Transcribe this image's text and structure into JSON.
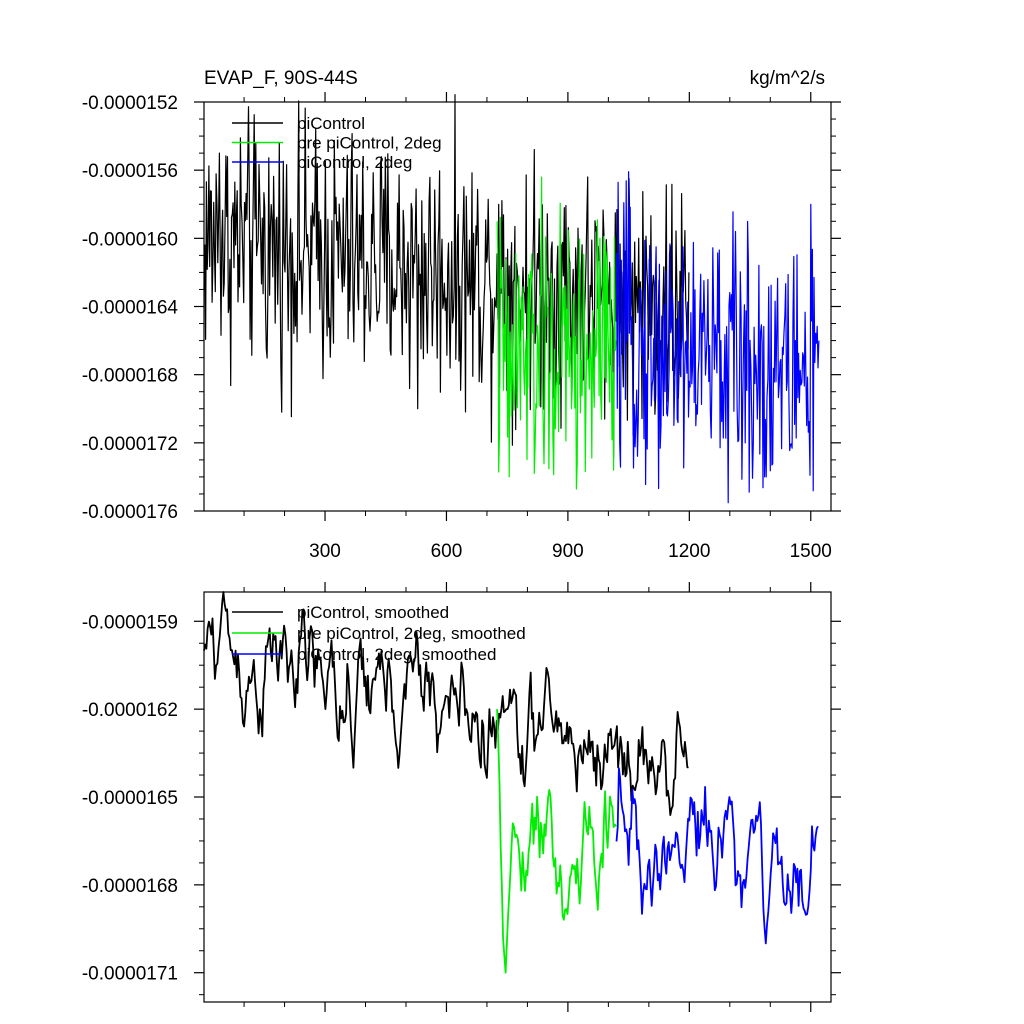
{
  "chart_data": [
    {
      "type": "line",
      "title": "EVAP_F, 90S-44S",
      "units": "kg/m^2/s",
      "xlim": [
        1,
        1550
      ],
      "ylim": [
        -1.76e-05,
        -1.52e-05
      ],
      "xticks": [
        300,
        600,
        900,
        1200,
        1500
      ],
      "xtick_labels": [
        "300",
        "600",
        "900",
        "1200",
        "1500"
      ],
      "yticks": [
        -1.52e-05,
        -1.56e-05,
        -1.6e-05,
        -1.64e-05,
        -1.68e-05,
        -1.72e-05,
        -1.76e-05
      ],
      "ytick_labels": [
        "-0.0000152",
        "-0.0000156",
        "-0.0000160",
        "-0.0000164",
        "-0.0000168",
        "-0.0000172",
        "-0.0000176"
      ],
      "legend_position": "top-left",
      "grid": false,
      "series": [
        {
          "name": "piControl",
          "color": "#000000",
          "x_range": [
            1,
            1200
          ],
          "start": -1.6e-05,
          "end": -1.64e-05,
          "noise": 3.6e-07,
          "anchors": [
            [
              1,
              -1.63e-05
            ],
            [
              40,
              -1.55e-05
            ],
            [
              140,
              -1.58e-05
            ],
            [
              530,
              -1.7e-05
            ],
            [
              730,
              -1.58e-05
            ],
            [
              1200,
              -1.62e-05
            ]
          ]
        },
        {
          "name": "pre piControl, 2deg",
          "color": "#00ee00",
          "x_range": [
            725,
            1020
          ],
          "start": -1.67e-05,
          "end": -1.67e-05,
          "noise": 4.2e-07,
          "anchors": [
            [
              725,
              -1.59e-05
            ],
            [
              755,
              -1.74e-05
            ],
            [
              980,
              -1.6e-05
            ],
            [
              1020,
              -1.66e-05
            ]
          ]
        },
        {
          "name": "piControl, 2deg",
          "color": "#0000ff",
          "x_range": [
            1020,
            1520
          ],
          "start": -1.66e-05,
          "end": -1.68e-05,
          "noise": 3.8e-07,
          "anchors": [
            [
              1390,
              -1.74e-05
            ],
            [
              1500,
              -1.58e-05
            ],
            [
              1520,
              -1.66e-05
            ]
          ]
        }
      ]
    },
    {
      "type": "line",
      "title": "",
      "xlim": [
        1,
        1550
      ],
      "ylim": [
        -1.72e-05,
        -1.58e-05
      ],
      "xticks": [
        300,
        600,
        900,
        1200,
        1500
      ],
      "yticks": [
        -1.59e-05,
        -1.62e-05,
        -1.65e-05,
        -1.68e-05,
        -1.71e-05
      ],
      "ytick_labels": [
        "-0.0000159",
        "-0.0000162",
        "-0.0000165",
        "-0.0000168",
        "-0.0000171"
      ],
      "legend_position": "top-left",
      "grid": false,
      "series": [
        {
          "name": "piControl, smoothed",
          "color": "#000000",
          "x_range": [
            1,
            1200
          ],
          "start": -1.6e-05,
          "end": -1.64e-05,
          "noise": 1.2e-07,
          "anchors": [
            [
              1,
              -1.6e-05
            ],
            [
              50,
              -1.58e-05
            ],
            [
              300,
              -1.62e-05
            ],
            [
              370,
              -1.64e-05
            ],
            [
              750,
              -1.62e-05
            ],
            [
              1200,
              -1.64e-05
            ]
          ]
        },
        {
          "name": "pre piControl, 2deg, smoothed",
          "color": "#00ee00",
          "x_range": [
            725,
            1020
          ],
          "start": -1.66e-05,
          "end": -1.67e-05,
          "noise": 1.6e-07,
          "anchors": [
            [
              725,
              -1.62e-05
            ],
            [
              745,
              -1.71e-05
            ],
            [
              900,
              -1.69e-05
            ],
            [
              1020,
              -1.66e-05
            ]
          ]
        },
        {
          "name": "piControl, 2deg, smoothed",
          "color": "#0000ff",
          "x_range": [
            1020,
            1520
          ],
          "start": -1.66e-05,
          "end": -1.67e-05,
          "noise": 1.4e-07,
          "anchors": [
            [
              1300,
              -1.65e-05
            ],
            [
              1390,
              -1.7e-05
            ],
            [
              1490,
              -1.69e-05
            ],
            [
              1520,
              -1.66e-05
            ]
          ]
        }
      ]
    }
  ]
}
